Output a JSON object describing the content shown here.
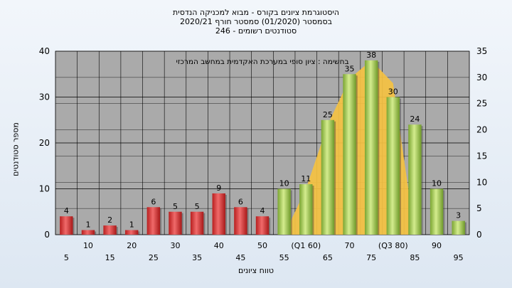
{
  "chart_data": {
    "type": "bar",
    "title": [
      "היסטוגרמת ציונים בקורס - מבוא למכניקה הנדסית",
      "בסמסטר  (01/2020)  סמסטר חורף  2020/21",
      "סטודנטים רשומים - 246"
    ],
    "annotation": "בחשימה : ציון סופי במערכת האקדמית במחשב המרכזי",
    "xlabel": "טווח ציונים",
    "ylabel": "מספר סטודנטים",
    "categories": [
      "5",
      "10",
      "15",
      "20",
      "25",
      "30",
      "35",
      "40",
      "45",
      "50",
      "55",
      "(Q1 60)",
      "65",
      "70",
      "75",
      "(Q3 80)",
      "85",
      "90",
      "95"
    ],
    "values": [
      4,
      1,
      2,
      1,
      6,
      5,
      5,
      9,
      6,
      4,
      10,
      11,
      25,
      35,
      38,
      30,
      24,
      10,
      3
    ],
    "bar_colors": [
      "red",
      "red",
      "red",
      "red",
      "red",
      "red",
      "red",
      "red",
      "red",
      "red",
      "green",
      "green",
      "green",
      "green",
      "green",
      "green",
      "green",
      "green",
      "green"
    ],
    "ylim_left": [
      0,
      40
    ],
    "yticks_left": [
      0,
      10,
      20,
      30,
      40
    ],
    "ylim_right": [
      0,
      35
    ],
    "yticks_right": [
      0,
      5,
      10,
      15,
      20,
      25,
      30,
      35
    ],
    "overlay": {
      "type": "area",
      "color": "#f5c242",
      "points": [
        [
          55,
          0
        ],
        [
          60,
          10
        ],
        [
          65,
          24
        ],
        [
          70,
          34
        ],
        [
          75,
          38
        ],
        [
          80,
          33
        ],
        [
          85,
          0
        ]
      ]
    },
    "grid": true,
    "colors": {
      "red": "#d93a3a",
      "green": "#9bc24a",
      "plot_bg": "#aaaaaa"
    }
  }
}
